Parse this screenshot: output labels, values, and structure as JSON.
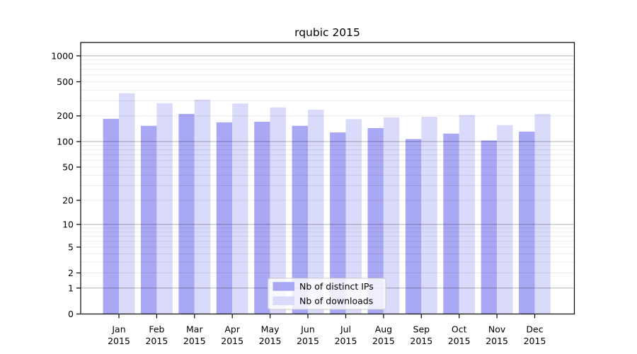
{
  "title": "rqubic 2015",
  "legend": {
    "position": "lower center",
    "items": [
      {
        "label": "Nb of distinct IPs",
        "color": "#a8a8f5"
      },
      {
        "label": "Nb of downloads",
        "color": "#dadafa"
      }
    ]
  },
  "chart_data": {
    "type": "bar",
    "title": "rqubic 2015",
    "categories": [
      "Jan 2015",
      "Feb 2015",
      "Mar 2015",
      "Apr 2015",
      "May 2015",
      "Jun 2015",
      "Jul 2015",
      "Aug 2015",
      "Sep 2015",
      "Oct 2015",
      "Nov 2015",
      "Dec 2015"
    ],
    "month_labels": [
      "Jan",
      "Feb",
      "Mar",
      "Apr",
      "May",
      "Jun",
      "Jul",
      "Aug",
      "Sep",
      "Oct",
      "Nov",
      "Dec"
    ],
    "year_label": "2015",
    "series": [
      {
        "name": "Nb of distinct IPs",
        "color": "#a8a8f5",
        "values": [
          185,
          153,
          211,
          168,
          171,
          153,
          128,
          144,
          107,
          124,
          103,
          131
        ]
      },
      {
        "name": "Nb of downloads",
        "color": "#dadafa",
        "values": [
          367,
          281,
          310,
          279,
          251,
          236,
          183,
          192,
          195,
          205,
          156,
          211
        ]
      }
    ],
    "xlabel": "",
    "ylabel": "",
    "yscale": "log1p",
    "yticks": [
      0,
      1,
      2,
      5,
      10,
      20,
      50,
      100,
      200,
      500,
      1000
    ],
    "ylim": [
      0,
      1430
    ],
    "grid": {
      "major": true,
      "minor": true,
      "drawn_over_bars": true
    },
    "legend_position": "lower center"
  },
  "colors": {
    "background": "#ffffff",
    "axis": "#000000",
    "grid_major": "rgba(0,0,0,0.30)",
    "grid_minor": "rgba(0,0,0,0.08)",
    "legend_border": "#c8c8c8",
    "legend_fill": "rgba(255,255,255,0.8)"
  }
}
